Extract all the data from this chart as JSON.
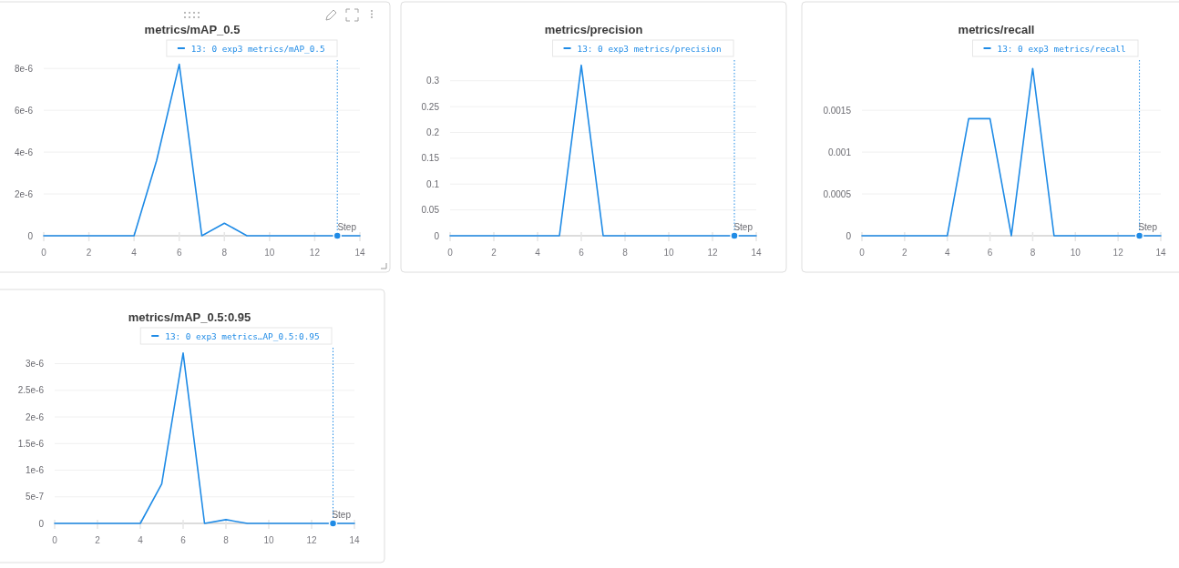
{
  "chart_data": [
    {
      "type": "line",
      "title": "metrics/mAP_0.5",
      "xlabel": "Step",
      "x": [
        0,
        1,
        2,
        3,
        4,
        5,
        6,
        7,
        8,
        9,
        10,
        11,
        12,
        13,
        14
      ],
      "series": [
        {
          "name": "13: 0 exp3 metrics/mAP_0.5",
          "color": "#1f8be6",
          "values": [
            0,
            0,
            0,
            0,
            0,
            3.6e-06,
            8.2e-06,
            0,
            6e-07,
            0,
            0,
            0,
            0,
            0,
            0
          ]
        },
        {
          "type": "scatter",
          "color": "#1f8be6",
          "values": [
            null,
            null,
            null,
            null,
            null,
            null,
            null,
            null,
            null,
            null,
            null,
            null,
            null,
            0,
            null
          ]
        }
      ],
      "xlim": [
        0,
        14
      ],
      "xticks": [
        0,
        2,
        4,
        6,
        8,
        10,
        12,
        14
      ],
      "ylim": [
        0,
        8.4e-06
      ],
      "yticks": [
        0,
        {
          "value": 2e-06,
          "label": "2e-6"
        },
        {
          "value": 4e-06,
          "label": "4e-6"
        },
        {
          "value": 6e-06,
          "label": "6e-6"
        },
        {
          "value": 8e-06,
          "label": "8e-6"
        }
      ],
      "grid": "y",
      "legend": "top right",
      "ref_lines": [
        {
          "axis": "x",
          "value": 13,
          "color": "#1f8be6",
          "line_style": "dotted"
        }
      ]
    },
    {
      "type": "line",
      "title": "metrics/precision",
      "xlabel": "Step",
      "x": [
        0,
        1,
        2,
        3,
        4,
        5,
        6,
        7,
        8,
        9,
        10,
        11,
        12,
        13,
        14
      ],
      "series": [
        {
          "name": "13: 0 exp3 metrics/precision",
          "color": "#1f8be6",
          "values": [
            0,
            0,
            0,
            0,
            0,
            0,
            0.33,
            0,
            0,
            0,
            0,
            0,
            0,
            0,
            0
          ]
        },
        {
          "type": "scatter",
          "color": "#1f8be6",
          "values": [
            null,
            null,
            null,
            null,
            null,
            null,
            null,
            null,
            null,
            null,
            null,
            null,
            null,
            0,
            null
          ]
        }
      ],
      "xlim": [
        0,
        14
      ],
      "xticks": [
        0,
        2,
        4,
        6,
        8,
        10,
        12,
        14
      ],
      "ylim": [
        0,
        0.34
      ],
      "yticks": [
        0,
        0.05,
        0.1,
        0.15,
        0.2,
        0.25,
        0.3
      ],
      "grid": "y",
      "legend": "top right",
      "ref_lines": [
        {
          "axis": "x",
          "value": 13,
          "color": "#1f8be6",
          "line_style": "dotted"
        }
      ]
    },
    {
      "type": "line",
      "title": "metrics/recall",
      "xlabel": "Step",
      "x": [
        0,
        1,
        2,
        3,
        4,
        5,
        6,
        7,
        8,
        9,
        10,
        11,
        12,
        13,
        14
      ],
      "series": [
        {
          "name": "13: 0 exp3 metrics/recall",
          "color": "#1f8be6",
          "values": [
            0,
            0,
            0,
            0,
            0,
            0.0014,
            0.0014,
            0,
            0.002,
            0,
            0,
            0,
            0,
            0,
            0
          ]
        },
        {
          "type": "scatter",
          "color": "#1f8be6",
          "values": [
            null,
            null,
            null,
            null,
            null,
            null,
            null,
            null,
            null,
            null,
            null,
            null,
            null,
            0,
            null
          ]
        }
      ],
      "xlim": [
        0,
        14
      ],
      "xticks": [
        0,
        2,
        4,
        6,
        8,
        10,
        12,
        14
      ],
      "ylim": [
        0,
        0.0021
      ],
      "yticks": [
        0,
        0.0005,
        0.001,
        0.0015
      ],
      "grid": "y",
      "legend": "top right",
      "ref_lines": [
        {
          "axis": "x",
          "value": 13,
          "color": "#1f8be6",
          "line_style": "dotted"
        }
      ]
    },
    {
      "type": "line",
      "title": "metrics/mAP_0.5:0.95",
      "xlabel": "Step",
      "x": [
        0,
        1,
        2,
        3,
        4,
        5,
        6,
        7,
        8,
        9,
        10,
        11,
        12,
        13,
        14
      ],
      "series": [
        {
          "name": "13: 0 exp3 metrics…AP_0.5:0.95",
          "color": "#1f8be6",
          "values": [
            0,
            0,
            0,
            0,
            0,
            7.4e-07,
            3.2e-06,
            0,
            7e-08,
            0,
            0,
            0,
            0,
            0,
            0
          ]
        },
        {
          "type": "scatter",
          "color": "#1f8be6",
          "values": [
            null,
            null,
            null,
            null,
            null,
            null,
            null,
            null,
            null,
            null,
            null,
            null,
            null,
            0,
            null
          ]
        }
      ],
      "xlim": [
        0,
        14
      ],
      "xticks": [
        0,
        2,
        4,
        6,
        8,
        10,
        12,
        14
      ],
      "ylim": [
        0,
        3.3e-06
      ],
      "yticks": [
        0,
        {
          "value": 5e-07,
          "label": "5e-7"
        },
        {
          "value": 1e-06,
          "label": "1e-6"
        },
        {
          "value": 1.5e-06,
          "label": "1.5e-6"
        },
        {
          "value": 2e-06,
          "label": "2e-6"
        },
        {
          "value": 2.5e-06,
          "label": "2.5e-6"
        },
        {
          "value": 3e-06,
          "label": "3e-6"
        }
      ],
      "grid": "y",
      "legend": "top right",
      "ref_lines": [
        {
          "axis": "x",
          "value": 13,
          "color": "#1f8be6",
          "line_style": "dotted"
        }
      ]
    }
  ]
}
